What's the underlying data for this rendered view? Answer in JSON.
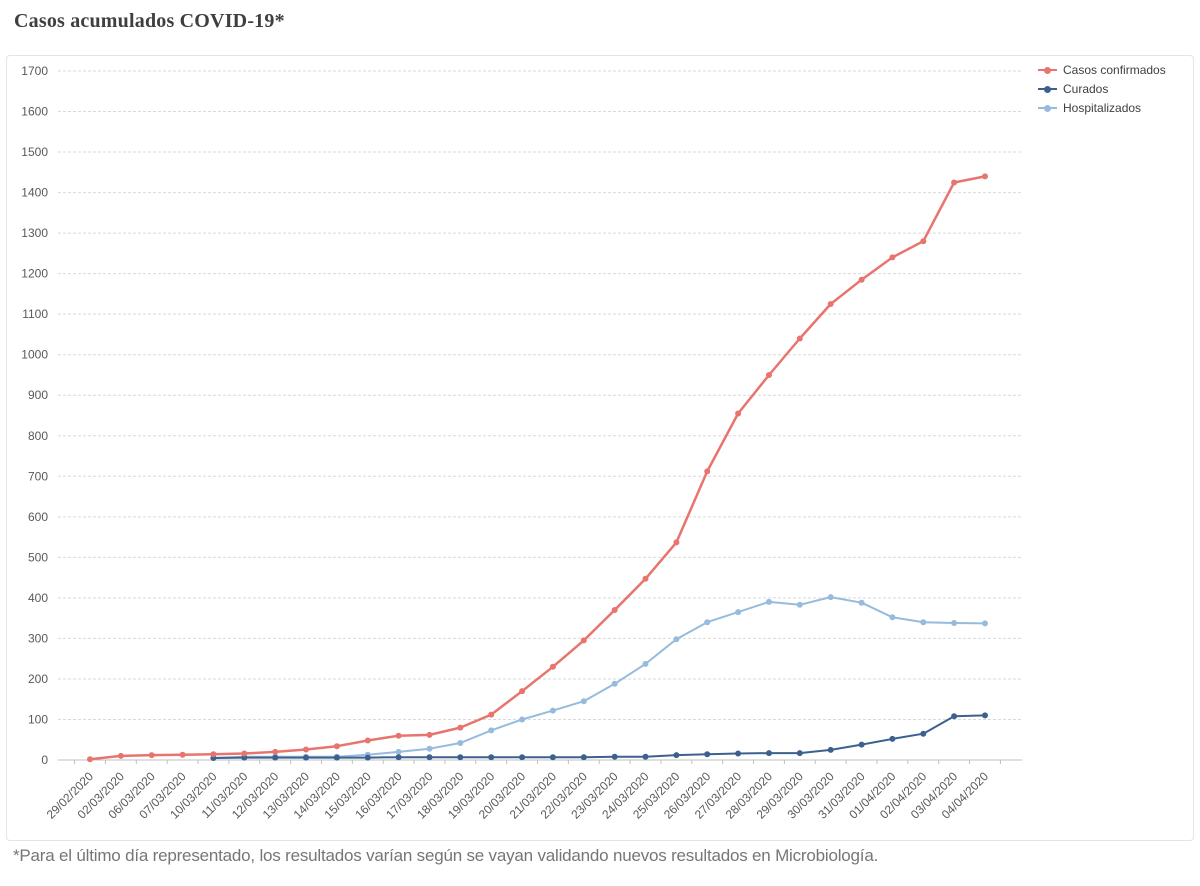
{
  "chart_data": {
    "type": "line",
    "title": "Casos acumulados COVID-19*",
    "footnote": "*Para el último día representado, los resultados varían según se vayan validando nuevos resultados en Microbiología.",
    "xlabel": "",
    "ylabel": "",
    "ylim": [
      0,
      1700
    ],
    "ytick_step": 100,
    "grid": true,
    "legend_position": "top-right",
    "categories": [
      "29/02/2020",
      "02/03/2020",
      "06/03/2020",
      "07/03/2020",
      "10/03/2020",
      "11/03/2020",
      "12/03/2020",
      "13/03/2020",
      "14/03/2020",
      "15/03/2020",
      "16/03/2020",
      "17/03/2020",
      "18/03/2020",
      "19/03/2020",
      "20/03/2020",
      "21/03/2020",
      "22/03/2020",
      "23/03/2020",
      "24/03/2020",
      "25/03/2020",
      "26/03/2020",
      "27/03/2020",
      "28/03/2020",
      "29/03/2020",
      "30/03/2020",
      "31/03/2020",
      "01/04/2020",
      "02/04/2020",
      "03/04/2020",
      "04/04/2020"
    ],
    "series": [
      {
        "name": "Casos confirmados",
        "color": "#e8746e",
        "values": [
          2,
          10,
          12,
          13,
          14,
          16,
          20,
          26,
          34,
          48,
          60,
          62,
          80,
          112,
          170,
          230,
          295,
          370,
          447,
          537,
          712,
          855,
          950,
          1040,
          1125,
          1185,
          1240,
          1280,
          1425,
          1440
        ]
      },
      {
        "name": "Curados",
        "color": "#3d618e",
        "values": [
          null,
          null,
          null,
          null,
          5,
          6,
          6,
          6,
          6,
          6,
          7,
          7,
          7,
          7,
          7,
          7,
          7,
          8,
          8,
          12,
          14,
          16,
          17,
          17,
          25,
          38,
          52,
          65,
          108,
          110
        ]
      },
      {
        "name": "Hospitalizados",
        "color": "#96bbdd",
        "values": [
          null,
          null,
          null,
          null,
          5,
          8,
          8,
          8,
          8,
          13,
          20,
          28,
          42,
          73,
          100,
          122,
          145,
          188,
          237,
          298,
          340,
          365,
          390,
          383,
          402,
          388,
          352,
          340,
          338,
          337
        ]
      }
    ]
  },
  "colors": {
    "title": "#3f3f3f",
    "axis_text": "#595959",
    "gridline": "#d9d9d9",
    "axis_line": "#bfbfbf",
    "footnote": "#767676",
    "border": "#e4e4e4",
    "background": "#ffffff"
  }
}
